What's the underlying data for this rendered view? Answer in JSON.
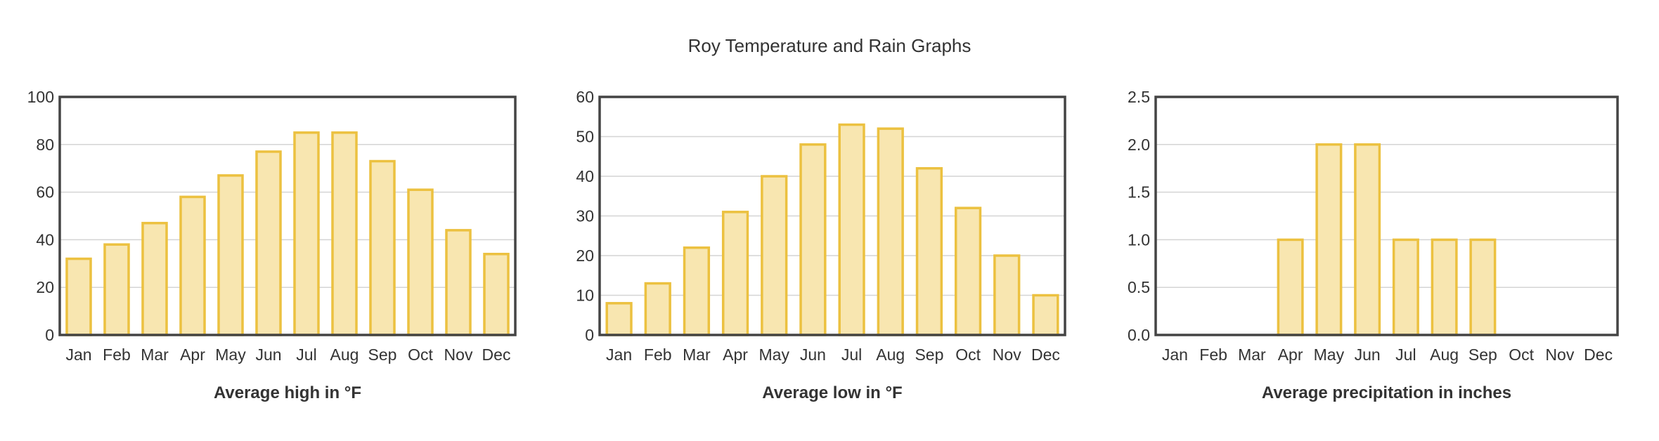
{
  "page": {
    "title": "Roy Temperature and Rain Graphs"
  },
  "colors": {
    "bar_fill": "#f8e6b0",
    "bar_stroke": "#ecc140",
    "grid": "#d4d4d4",
    "frame": "#444444",
    "text": "#333333"
  },
  "chart_data": [
    {
      "type": "bar",
      "xlabel": "Average high in °F",
      "ylabel": "",
      "categories": [
        "Jan",
        "Feb",
        "Mar",
        "Apr",
        "May",
        "Jun",
        "Jul",
        "Aug",
        "Sep",
        "Oct",
        "Nov",
        "Dec"
      ],
      "values": [
        32,
        38,
        47,
        58,
        67,
        77,
        85,
        85,
        73,
        61,
        44,
        34
      ],
      "ylim": [
        0,
        100
      ],
      "yticks": [
        "0",
        "20",
        "40",
        "60",
        "80",
        "100"
      ],
      "grid": true
    },
    {
      "type": "bar",
      "xlabel": "Average low in °F",
      "ylabel": "",
      "categories": [
        "Jan",
        "Feb",
        "Mar",
        "Apr",
        "May",
        "Jun",
        "Jul",
        "Aug",
        "Sep",
        "Oct",
        "Nov",
        "Dec"
      ],
      "values": [
        8,
        13,
        22,
        31,
        40,
        48,
        53,
        52,
        42,
        32,
        20,
        10
      ],
      "ylim": [
        0,
        60
      ],
      "yticks": [
        "0",
        "10",
        "20",
        "30",
        "40",
        "50",
        "60"
      ],
      "grid": true
    },
    {
      "type": "bar",
      "xlabel": "Average precipitation in inches",
      "ylabel": "",
      "categories": [
        "Jan",
        "Feb",
        "Mar",
        "Apr",
        "May",
        "Jun",
        "Jul",
        "Aug",
        "Sep",
        "Oct",
        "Nov",
        "Dec"
      ],
      "values": [
        0,
        0,
        0,
        1,
        2,
        2,
        1,
        1,
        1,
        0,
        0,
        0
      ],
      "ylim": [
        0,
        2.5
      ],
      "yticks": [
        "0.0",
        "0.5",
        "1.0",
        "1.5",
        "2.0",
        "2.5"
      ],
      "grid": true
    }
  ]
}
